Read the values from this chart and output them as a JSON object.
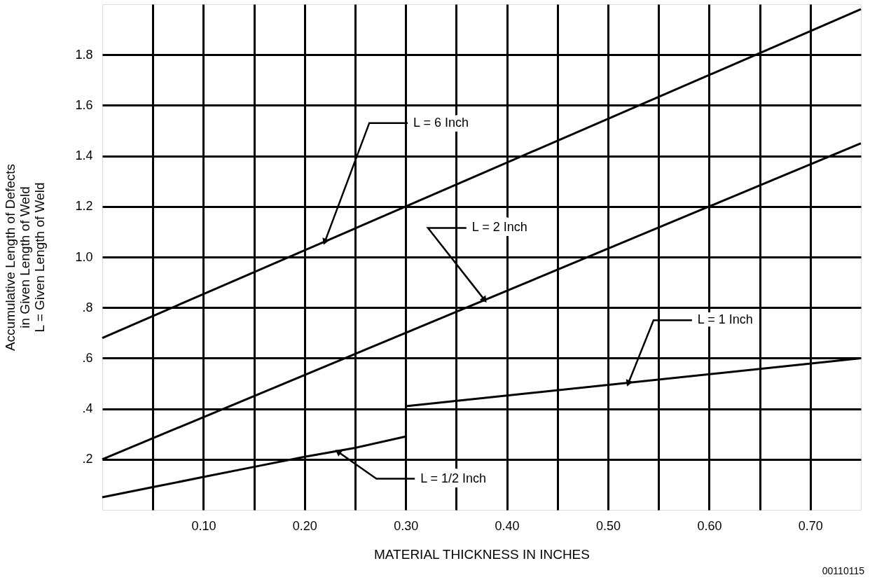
{
  "chart_data": {
    "type": "line",
    "xlabel": "MATERIAL THICKNESS IN INCHES",
    "ylabel": "Accumulative Length of Defects\nin Given Length of Weld\nL = Given Length of Weld",
    "series": [
      {
        "color": "#000000",
        "x": [
          0,
          0.75
        ],
        "values": [
          0.68,
          1.98
        ]
      },
      {
        "color": "#000000",
        "x": [
          0,
          0.75
        ],
        "values": [
          0.2,
          1.45
        ]
      },
      {
        "color": "#000000",
        "x": [
          0.3,
          0.75
        ],
        "values": [
          0.41,
          0.6
        ]
      },
      {
        "color": "#000000",
        "x": [
          0,
          0.05,
          0.1,
          0.15,
          0.2,
          0.25,
          0.3
        ],
        "values": [
          0.05,
          0.09,
          0.13,
          0.17,
          0.21,
          0.245,
          0.29
        ]
      }
    ],
    "xlim": [
      0,
      0.75
    ],
    "ylim": [
      0,
      2.0
    ],
    "xticks": [
      {
        "value": 0.05,
        "label": null
      },
      {
        "value": 0.1,
        "label": "0.10"
      },
      {
        "value": 0.15,
        "label": null
      },
      {
        "value": 0.2,
        "label": "0.20"
      },
      {
        "value": 0.25,
        "label": null
      },
      {
        "value": 0.3,
        "label": "0.30"
      },
      {
        "value": 0.35,
        "label": null
      },
      {
        "value": 0.4,
        "label": "0.40"
      },
      {
        "value": 0.45,
        "label": null
      },
      {
        "value": 0.5,
        "label": "0.50"
      },
      {
        "value": 0.55,
        "label": null
      },
      {
        "value": 0.6,
        "label": "0.60"
      },
      {
        "value": 0.65,
        "label": null
      },
      {
        "value": 0.7,
        "label": "0.70"
      }
    ],
    "yticks": [
      {
        "value": 0.2,
        "label": ".2"
      },
      {
        "value": 0.4,
        "label": ".4"
      },
      {
        "value": 0.6,
        "label": ".6"
      },
      {
        "value": 0.8,
        "label": ".8"
      },
      {
        "value": 1.0,
        "label": "1.0"
      },
      {
        "value": 1.2,
        "label": "1.2"
      },
      {
        "value": 1.4,
        "label": "1.4"
      },
      {
        "value": 1.6,
        "label": "1.6"
      },
      {
        "value": 1.8,
        "label": "1.8"
      }
    ],
    "annotations": [
      {
        "text": "L = 6 Inch",
        "x": 0.22,
        "y": 1.06
      },
      {
        "text": "L = 2 Inch",
        "x": 0.378,
        "y": 0.83
      },
      {
        "text": "L = 1 Inch",
        "x": 0.52,
        "y": 0.5
      },
      {
        "text": "L = 1/2 Inch",
        "x": 0.233,
        "y": 0.23
      },
      "00110115"
    ],
    "grid": true,
    "marker": "none",
    "line_style": "solid"
  }
}
